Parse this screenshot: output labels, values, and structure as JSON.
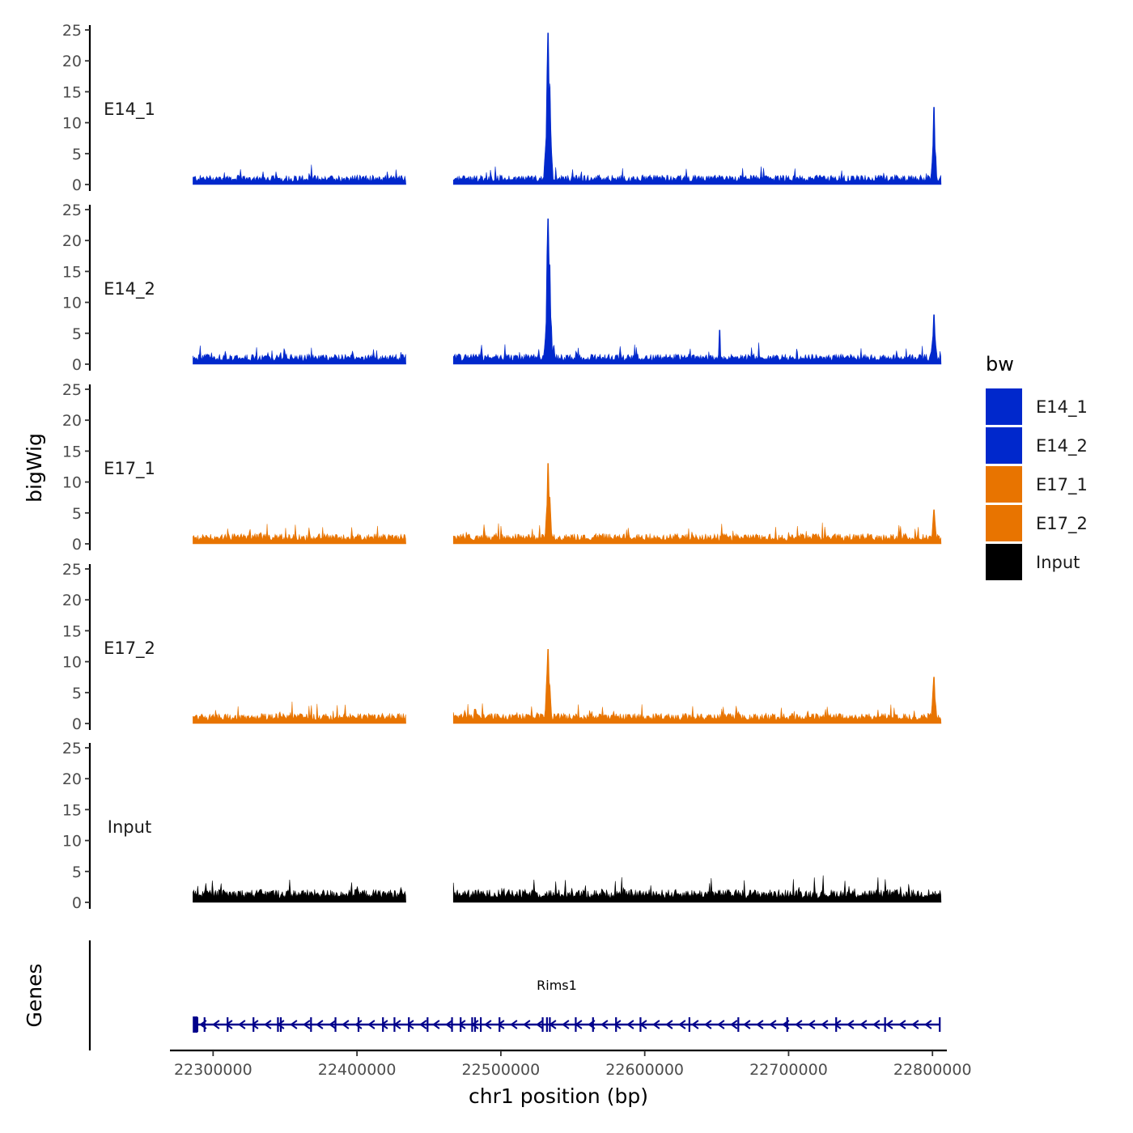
{
  "chart_data": {
    "type": "area",
    "title": "",
    "xlabel": "chr1 position (bp)",
    "ylabel": "bigWig",
    "genes_label": "Genes",
    "xlim": [
      22270000,
      22810000
    ],
    "ylim": [
      0,
      25
    ],
    "x_ticks": [
      22300000,
      22400000,
      22500000,
      22600000,
      22700000,
      22800000
    ],
    "x_tick_labels": [
      "22300000",
      "22400000",
      "22500000",
      "22600000",
      "22700000",
      "22800000"
    ],
    "y_ticks": [
      0,
      5,
      10,
      15,
      20,
      25
    ],
    "y_tick_labels": [
      "0",
      "5",
      "10",
      "15",
      "20",
      "25"
    ],
    "segments": [
      [
        22286000,
        22434000
      ],
      [
        22467000,
        22806000
      ]
    ],
    "legend": {
      "title": "bw",
      "position": "right"
    },
    "series": [
      {
        "name": "E14_1",
        "color": "#0028CC",
        "baseline": 1.4,
        "peaks": [
          {
            "x": 22533000,
            "height": 24.5,
            "width": 2200
          },
          {
            "x": 22801000,
            "height": 12.5,
            "width": 1600
          }
        ]
      },
      {
        "name": "E14_2",
        "color": "#0028CC",
        "baseline": 1.5,
        "peaks": [
          {
            "x": 22533000,
            "height": 23.5,
            "width": 2200
          },
          {
            "x": 22801000,
            "height": 8,
            "width": 1800
          },
          {
            "x": 22652000,
            "height": 5.5,
            "width": 600
          }
        ]
      },
      {
        "name": "E17_1",
        "color": "#E87400",
        "baseline": 1.5,
        "peaks": [
          {
            "x": 22533000,
            "height": 13,
            "width": 2000
          },
          {
            "x": 22801000,
            "height": 5.5,
            "width": 1600
          }
        ]
      },
      {
        "name": "E17_2",
        "color": "#E87400",
        "baseline": 1.5,
        "peaks": [
          {
            "x": 22533000,
            "height": 12,
            "width": 2000
          },
          {
            "x": 22801000,
            "height": 7.5,
            "width": 1600
          }
        ]
      },
      {
        "name": "Input",
        "color": "#000000",
        "baseline": 1.9,
        "peaks": []
      }
    ],
    "gene": {
      "name": "Rims1",
      "start": 22287000,
      "end": 22805000,
      "strand": "-",
      "color": "#00008B",
      "exons": [
        22287500,
        22289000,
        22294000,
        22310000,
        22328000,
        22345000,
        22347000,
        22368000,
        22385000,
        22401000,
        22418000,
        22426000,
        22436000,
        22449000,
        22466000,
        22472000,
        22480000,
        22482000,
        22486000,
        22499000,
        22529000,
        22532000,
        22534000,
        22552000,
        22564000,
        22580000,
        22597000,
        22631000,
        22665000,
        22699000,
        22733000,
        22767000,
        22805000
      ]
    }
  }
}
